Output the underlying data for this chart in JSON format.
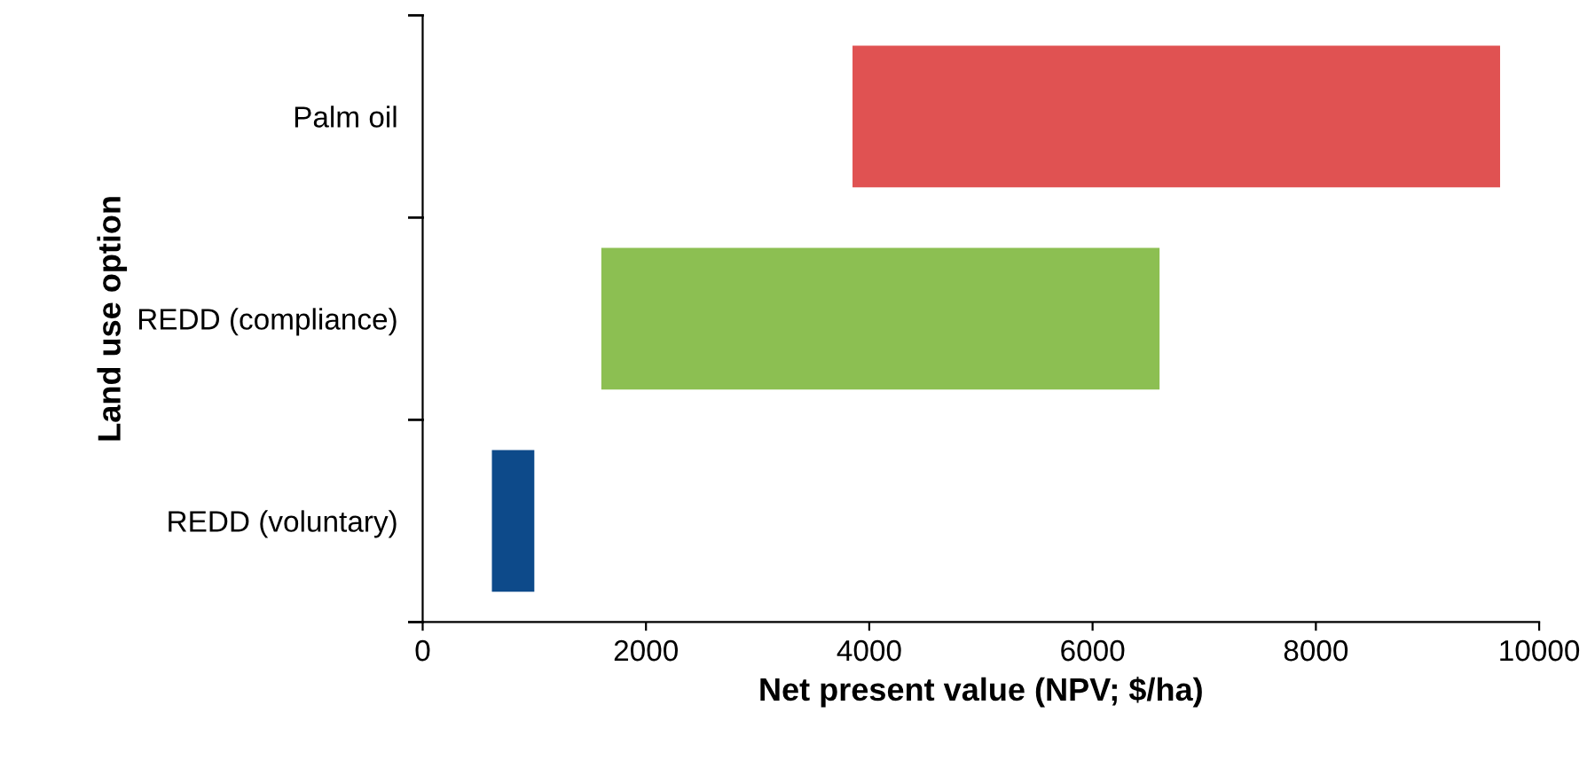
{
  "chart_data": {
    "type": "bar",
    "orientation": "horizontal",
    "xlabel": "Net present value (NPV; $/ha)",
    "ylabel": "Land use option",
    "categories": [
      "Palm oil",
      "REDD (compliance)",
      "REDD (voluntary)"
    ],
    "base": [
      3850,
      1600,
      620
    ],
    "values": [
      5800,
      5000,
      380
    ],
    "colors": [
      "#e05252",
      "#8cbf52",
      "#0d4a8a"
    ],
    "xlim": [
      0,
      10000
    ],
    "xticks": [
      0,
      2000,
      4000,
      6000,
      8000,
      10000
    ],
    "grid": false,
    "legend": false
  }
}
